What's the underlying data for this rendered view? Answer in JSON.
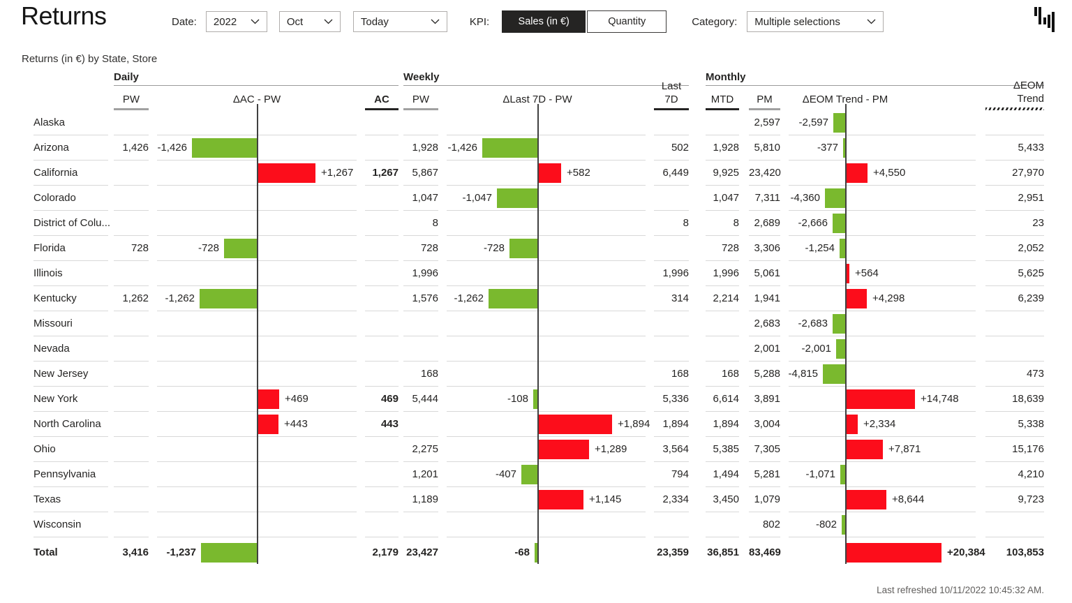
{
  "header": {
    "title": "Returns",
    "date_label": "Date:",
    "filters": {
      "year": "2022",
      "month": "Oct",
      "period": "Today"
    },
    "kpi_label": "KPI:",
    "kpi_options": [
      {
        "label": "Sales (in €)",
        "selected": true
      },
      {
        "label": "Quantity",
        "selected": false
      }
    ],
    "category_label": "Category:",
    "category_value": "Multiple selections"
  },
  "footer": {
    "last_refreshed": "Last refreshed 10/11/2022 10:45:32 AM."
  },
  "chart_data": {
    "type": "table",
    "title": "Returns (in €) by State, Store",
    "unit": "€",
    "legend_note": "green bars = favorable (decrease), red bars = adverse (increase)",
    "colors": {
      "favorable": "#7AB92E",
      "adverse": "#FC0D1B",
      "axis": "#404040"
    },
    "groups": [
      {
        "label": "Daily",
        "columns": [
          {
            "label": "PW",
            "style": "previous"
          },
          {
            "label": "ΔAC - PW",
            "style": "delta"
          },
          {
            "label": "AC",
            "style": "actual"
          }
        ]
      },
      {
        "label": "Weekly",
        "columns": [
          {
            "label": "PW",
            "style": "previous"
          },
          {
            "label": "ΔLast 7D - PW",
            "style": "delta"
          },
          {
            "label": "Last 7D",
            "style": "actual"
          }
        ]
      },
      {
        "label": "Monthly",
        "columns": [
          {
            "label": "MTD",
            "style": "actual"
          },
          {
            "label": "PM",
            "style": "previous"
          },
          {
            "label": "ΔEOM Trend - PM",
            "style": "delta"
          },
          {
            "label": "ΔEOM Trend",
            "style": "forecast"
          }
        ]
      }
    ],
    "rows": [
      {
        "state": "Alaska",
        "daily": {},
        "weekly": {},
        "monthly": {
          "mtd": null,
          "pm": 2597,
          "delta": -2597,
          "trend": null
        }
      },
      {
        "state": "Arizona",
        "daily": {
          "pw": 1426,
          "delta": -1426
        },
        "weekly": {
          "pw": 1928,
          "delta": -1426,
          "last7d": 502
        },
        "monthly": {
          "mtd": 1928,
          "pm": 5810,
          "delta": -377,
          "trend": 5433
        }
      },
      {
        "state": "California",
        "daily": {
          "delta": 1267,
          "ac": 1267
        },
        "weekly": {
          "pw": 5867,
          "delta": 582,
          "last7d": 6449
        },
        "monthly": {
          "mtd": 9925,
          "pm": 23420,
          "delta": 4550,
          "trend": 27970
        }
      },
      {
        "state": "Colorado",
        "daily": {},
        "weekly": {
          "pw": 1047,
          "delta": -1047
        },
        "monthly": {
          "mtd": 1047,
          "pm": 7311,
          "delta": -4360,
          "trend": 2951
        }
      },
      {
        "state": "District of Colu...",
        "daily": {},
        "weekly": {
          "pw": 8,
          "last7d": 8
        },
        "monthly": {
          "mtd": 8,
          "pm": 2689,
          "delta": -2666,
          "trend": 23
        }
      },
      {
        "state": "Florida",
        "daily": {
          "pw": 728,
          "delta": -728
        },
        "weekly": {
          "pw": 728,
          "delta": -728
        },
        "monthly": {
          "mtd": 728,
          "pm": 3306,
          "delta": -1254,
          "trend": 2052
        }
      },
      {
        "state": "Illinois",
        "daily": {},
        "weekly": {
          "pw": 1996,
          "last7d": 1996
        },
        "monthly": {
          "mtd": 1996,
          "pm": 5061,
          "delta": 564,
          "trend": 5625
        }
      },
      {
        "state": "Kentucky",
        "daily": {
          "pw": 1262,
          "delta": -1262
        },
        "weekly": {
          "pw": 1576,
          "delta": -1262,
          "last7d": 314
        },
        "monthly": {
          "mtd": 2214,
          "pm": 1941,
          "delta": 4298,
          "trend": 6239
        }
      },
      {
        "state": "Missouri",
        "daily": {},
        "weekly": {},
        "monthly": {
          "mtd": null,
          "pm": 2683,
          "delta": -2683,
          "trend": null
        }
      },
      {
        "state": "Nevada",
        "daily": {},
        "weekly": {},
        "monthly": {
          "mtd": null,
          "pm": 2001,
          "delta": -2001,
          "trend": null
        }
      },
      {
        "state": "New Jersey",
        "daily": {},
        "weekly": {
          "pw": 168,
          "last7d": 168
        },
        "monthly": {
          "mtd": 168,
          "pm": 5288,
          "delta": -4815,
          "trend": 473
        }
      },
      {
        "state": "New York",
        "daily": {
          "delta": 469,
          "ac": 469
        },
        "weekly": {
          "pw": 5444,
          "delta": -108,
          "last7d": 5336
        },
        "monthly": {
          "mtd": 6614,
          "pm": 3891,
          "delta": 14748,
          "trend": 18639
        }
      },
      {
        "state": "North Carolina",
        "daily": {
          "delta": 443,
          "ac": 443
        },
        "weekly": {
          "delta": 1894,
          "last7d": 1894
        },
        "monthly": {
          "mtd": 1894,
          "pm": 3004,
          "delta": 2334,
          "trend": 5338
        }
      },
      {
        "state": "Ohio",
        "daily": {},
        "weekly": {
          "pw": 2275,
          "delta": 1289,
          "last7d": 3564
        },
        "monthly": {
          "mtd": 5385,
          "pm": 7305,
          "delta": 7871,
          "trend": 15176
        }
      },
      {
        "state": "Pennsylvania",
        "daily": {},
        "weekly": {
          "pw": 1201,
          "delta": -407,
          "last7d": 794
        },
        "monthly": {
          "mtd": 1494,
          "pm": 5281,
          "delta": -1071,
          "trend": 4210
        }
      },
      {
        "state": "Texas",
        "daily": {},
        "weekly": {
          "pw": 1189,
          "delta": 1145,
          "last7d": 2334
        },
        "monthly": {
          "mtd": 3450,
          "pm": 1079,
          "delta": 8644,
          "trend": 9723
        }
      },
      {
        "state": "Wisconsin",
        "daily": {},
        "weekly": {},
        "monthly": {
          "mtd": null,
          "pm": 802,
          "delta": -802,
          "trend": null
        }
      }
    ],
    "total": {
      "state": "Total",
      "daily": {
        "pw": 3416,
        "delta": -1237,
        "ac": 2179
      },
      "weekly": {
        "pw": 23427,
        "delta": -68,
        "last7d": 23359
      },
      "monthly": {
        "mtd": 36851,
        "pm": 83469,
        "delta": 20384,
        "trend": 103853
      }
    }
  }
}
